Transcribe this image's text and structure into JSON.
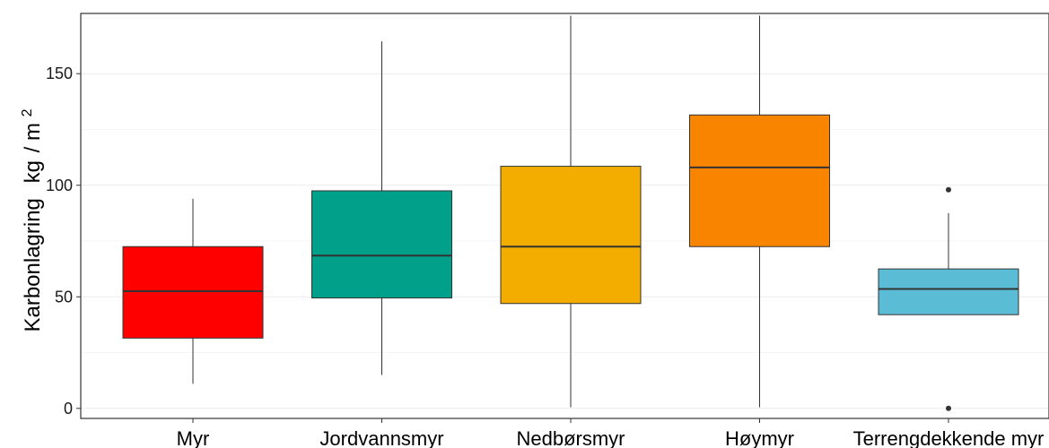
{
  "chart_data": {
    "type": "boxplot",
    "title": "",
    "xlabel": "",
    "ylabel": "Karbonlagring",
    "ylabel_unit_base": "kg",
    "ylabel_unit_slash": "/",
    "ylabel_unit_sub": "m",
    "ylabel_unit_exp": "2",
    "ylim": [
      -4.5,
      177
    ],
    "yticks": [
      0,
      50,
      100,
      150
    ],
    "grid": "horizontal",
    "legend": "none",
    "categories": [
      "Myr",
      "Jordvannsmyr",
      "Nedbørsmyr",
      "Høymyr",
      "Terrengdekkende myr"
    ],
    "boxes": [
      {
        "category": "Myr",
        "min": 11,
        "q1": 31.5,
        "median": 52.5,
        "q3": 72.5,
        "max": 94,
        "outliers": [],
        "color": "#FF0000"
      },
      {
        "category": "Jordvannsmyr",
        "min": 15,
        "q1": 49.5,
        "median": 68.5,
        "q3": 97.5,
        "max": 164.5,
        "outliers": [],
        "color": "#00A08A"
      },
      {
        "category": "Nedbørsmyr",
        "min": 0.5,
        "q1": 47,
        "median": 72.5,
        "q3": 108.5,
        "max": 176,
        "outliers": [],
        "color": "#F2AD00"
      },
      {
        "category": "Høymyr",
        "min": 0.5,
        "q1": 72.5,
        "median": 108,
        "q3": 131.5,
        "max": 176,
        "outliers": [],
        "color": "#F98400"
      },
      {
        "category": "Terrengdekkende myr",
        "min": 42,
        "q1": 42,
        "median": 53.5,
        "q3": 62.5,
        "max": 87.5,
        "outliers": [
          98,
          0
        ],
        "color": "#5BBCD6"
      }
    ]
  }
}
